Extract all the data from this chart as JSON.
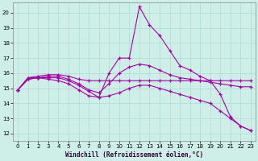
{
  "xlabel": "Windchill (Refroidissement éolien,°C)",
  "background_color": "#ceeee8",
  "grid_color": "#aaddcc",
  "line_color": "#aa00aa",
  "xlim": [
    -0.5,
    23.5
  ],
  "ylim": [
    11.5,
    20.7
  ],
  "yticks": [
    12,
    13,
    14,
    15,
    16,
    17,
    18,
    19,
    20
  ],
  "xticks": [
    0,
    1,
    2,
    3,
    4,
    5,
    6,
    7,
    8,
    9,
    10,
    11,
    12,
    13,
    14,
    15,
    16,
    17,
    18,
    19,
    20,
    21,
    22,
    23
  ],
  "series": [
    {
      "x": [
        0,
        1,
        2,
        3,
        4,
        5,
        6,
        7,
        8,
        9,
        10,
        11,
        12,
        13,
        14,
        15,
        16,
        17,
        18,
        19,
        20,
        21,
        22,
        23
      ],
      "y": [
        14.9,
        15.7,
        15.7,
        15.7,
        15.7,
        15.5,
        15.2,
        14.8,
        14.4,
        16.0,
        17.0,
        17.0,
        20.4,
        19.2,
        18.5,
        17.5,
        16.5,
        16.2,
        15.8,
        15.5,
        14.6,
        13.1,
        12.5,
        12.2
      ]
    },
    {
      "x": [
        0,
        1,
        2,
        3,
        4,
        5,
        6,
        7,
        8,
        9,
        10,
        11,
        12,
        13,
        14,
        15,
        16,
        17,
        18,
        19,
        20,
        21,
        22,
        23
      ],
      "y": [
        14.9,
        15.7,
        15.8,
        15.9,
        15.9,
        15.8,
        15.6,
        15.5,
        15.5,
        15.5,
        15.5,
        15.5,
        15.5,
        15.5,
        15.5,
        15.5,
        15.5,
        15.5,
        15.5,
        15.5,
        15.5,
        15.5,
        15.5,
        15.5
      ]
    },
    {
      "x": [
        0,
        1,
        2,
        3,
        4,
        5,
        6,
        7,
        8,
        9,
        10,
        11,
        12,
        13,
        14,
        15,
        16,
        17,
        18,
        19,
        20,
        21,
        22,
        23
      ],
      "y": [
        14.9,
        15.6,
        15.7,
        15.8,
        15.8,
        15.6,
        15.3,
        14.9,
        14.7,
        15.3,
        16.0,
        16.4,
        16.6,
        16.5,
        16.2,
        15.9,
        15.7,
        15.6,
        15.5,
        15.4,
        15.3,
        15.2,
        15.1,
        15.1
      ]
    },
    {
      "x": [
        0,
        1,
        2,
        3,
        4,
        5,
        6,
        7,
        8,
        9,
        10,
        11,
        12,
        13,
        14,
        15,
        16,
        17,
        18,
        19,
        20,
        21,
        22,
        23
      ],
      "y": [
        14.9,
        15.6,
        15.7,
        15.6,
        15.5,
        15.3,
        14.9,
        14.5,
        14.4,
        14.5,
        14.7,
        15.0,
        15.2,
        15.2,
        15.0,
        14.8,
        14.6,
        14.4,
        14.2,
        14.0,
        13.5,
        13.0,
        12.5,
        12.2
      ]
    }
  ]
}
